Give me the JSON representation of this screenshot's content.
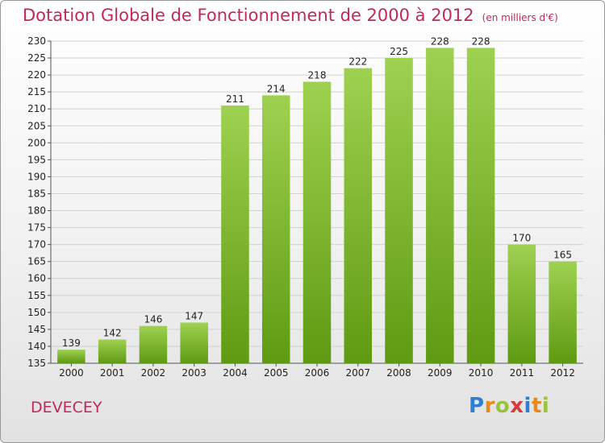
{
  "header": {
    "title": "Dotation Globale de Fonctionnement de 2000 à 2012",
    "unit": "(en milliers d'€)"
  },
  "footer": {
    "commune": "DEVECEY",
    "logo": [
      "P",
      "r",
      "o",
      "x",
      "i",
      "t",
      "i"
    ],
    "logo_colors": [
      "#2f7fd0",
      "#e8891e",
      "#9ac33c",
      "#d93a3a",
      "#2f7fd0",
      "#e8891e",
      "#9ac33c"
    ]
  },
  "colors": {
    "title": "#c0285e",
    "bar_light": "#9ed150",
    "bar_dark": "#5f9a12"
  },
  "chart_data": {
    "type": "bar",
    "categories": [
      "2000",
      "2001",
      "2002",
      "2003",
      "2004",
      "2005",
      "2006",
      "2007",
      "2008",
      "2009",
      "2010",
      "2011",
      "2012"
    ],
    "values": [
      139,
      142,
      146,
      147,
      211,
      214,
      218,
      222,
      225,
      228,
      228,
      170,
      165
    ],
    "data_labels": [
      "139",
      "142",
      "146",
      "147",
      "211",
      "214",
      "218",
      "222",
      "225",
      "228",
      "228",
      "170",
      "165"
    ],
    "title": "Dotation Globale de Fonctionnement de 2000 à 2012",
    "xlabel": "",
    "ylabel": "",
    "ylim": [
      135,
      230
    ],
    "yticks": [
      135,
      140,
      145,
      150,
      155,
      160,
      165,
      170,
      175,
      180,
      185,
      190,
      195,
      200,
      205,
      210,
      215,
      220,
      225,
      230
    ],
    "grid": true
  }
}
